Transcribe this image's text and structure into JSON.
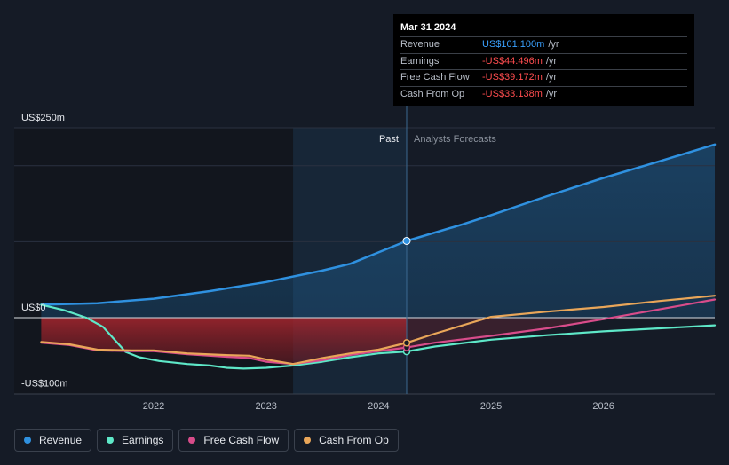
{
  "chart_data": {
    "type": "line",
    "title": "",
    "xlabel": "",
    "ylabel": "",
    "ylim": [
      -100,
      250
    ],
    "y_axis_labels": [
      {
        "value": 250,
        "label": "US$250m"
      },
      {
        "value": 0,
        "label": "US$0"
      },
      {
        "value": -100,
        "label": "-US$100m"
      }
    ],
    "x_ticks": [
      {
        "value": 2022,
        "label": "2022"
      },
      {
        "value": 2023,
        "label": "2023"
      },
      {
        "value": 2024,
        "label": "2024"
      },
      {
        "value": 2025,
        "label": "2025"
      },
      {
        "value": 2026,
        "label": "2026"
      }
    ],
    "xlim": [
      2020.76,
      2026.99
    ],
    "past_label": "Past",
    "forecast_label": "Analysts Forecasts",
    "highlight_start": 2023.24,
    "current_x": 2024.25,
    "series": [
      {
        "name": "Revenue",
        "color": "#2f91e0",
        "points": [
          [
            2021.0,
            17
          ],
          [
            2021.5,
            19
          ],
          [
            2022.0,
            25
          ],
          [
            2022.5,
            35
          ],
          [
            2023.0,
            47
          ],
          [
            2023.5,
            62
          ],
          [
            2023.75,
            71
          ],
          [
            2024.0,
            86
          ],
          [
            2024.25,
            101.1
          ],
          [
            2024.75,
            123
          ],
          [
            2025.0,
            135
          ],
          [
            2025.5,
            160
          ],
          [
            2026.0,
            184
          ],
          [
            2026.5,
            206
          ],
          [
            2026.99,
            228
          ]
        ]
      },
      {
        "name": "Earnings",
        "color": "#5ee8c8",
        "points": [
          [
            2021.0,
            17
          ],
          [
            2021.2,
            10
          ],
          [
            2021.4,
            0
          ],
          [
            2021.55,
            -12
          ],
          [
            2021.75,
            -45
          ],
          [
            2021.87,
            -52
          ],
          [
            2022.05,
            -57
          ],
          [
            2022.3,
            -61
          ],
          [
            2022.5,
            -63
          ],
          [
            2022.65,
            -66
          ],
          [
            2022.8,
            -67
          ],
          [
            2023.0,
            -66
          ],
          [
            2023.24,
            -63
          ],
          [
            2023.5,
            -58
          ],
          [
            2023.75,
            -52
          ],
          [
            2024.0,
            -47
          ],
          [
            2024.25,
            -44.5
          ],
          [
            2024.5,
            -38
          ],
          [
            2025.0,
            -29
          ],
          [
            2025.5,
            -23
          ],
          [
            2026.0,
            -18
          ],
          [
            2026.5,
            -14
          ],
          [
            2026.99,
            -10
          ]
        ]
      },
      {
        "name": "Free Cash Flow",
        "color": "#d84c8a",
        "points": [
          [
            2021.0,
            -33
          ],
          [
            2021.25,
            -36
          ],
          [
            2021.5,
            -43
          ],
          [
            2021.8,
            -44
          ],
          [
            2022.0,
            -44
          ],
          [
            2022.3,
            -48
          ],
          [
            2022.6,
            -51
          ],
          [
            2022.85,
            -53
          ],
          [
            2023.0,
            -58
          ],
          [
            2023.24,
            -61
          ],
          [
            2023.5,
            -56
          ],
          [
            2023.75,
            -49
          ],
          [
            2024.0,
            -44
          ],
          [
            2024.25,
            -39.2
          ],
          [
            2024.5,
            -33
          ],
          [
            2025.0,
            -24
          ],
          [
            2025.5,
            -14
          ],
          [
            2026.0,
            -2
          ],
          [
            2026.5,
            11
          ],
          [
            2026.99,
            24
          ]
        ]
      },
      {
        "name": "Cash From Op",
        "color": "#e9a659",
        "points": [
          [
            2021.0,
            -32
          ],
          [
            2021.25,
            -35
          ],
          [
            2021.5,
            -42
          ],
          [
            2021.8,
            -43
          ],
          [
            2022.0,
            -43
          ],
          [
            2022.3,
            -47
          ],
          [
            2022.6,
            -49
          ],
          [
            2022.85,
            -50
          ],
          [
            2023.0,
            -55
          ],
          [
            2023.24,
            -61
          ],
          [
            2023.5,
            -53
          ],
          [
            2023.75,
            -47
          ],
          [
            2024.0,
            -42
          ],
          [
            2024.25,
            -33.1
          ],
          [
            2024.5,
            -21
          ],
          [
            2025.0,
            1
          ],
          [
            2025.5,
            8
          ],
          [
            2026.0,
            14
          ],
          [
            2026.5,
            22
          ],
          [
            2026.99,
            29
          ]
        ]
      }
    ]
  },
  "tooltip": {
    "date": "Mar 31 2024",
    "rows": [
      {
        "label": "Revenue",
        "value": "US$101.100m",
        "unit": "/yr"
      },
      {
        "label": "Earnings",
        "value": "-US$44.496m",
        "unit": "/yr"
      },
      {
        "label": "Free Cash Flow",
        "value": "-US$39.172m",
        "unit": "/yr"
      },
      {
        "label": "Cash From Op",
        "value": "-US$33.138m",
        "unit": "/yr"
      }
    ]
  },
  "legend": [
    {
      "label": "Revenue",
      "color": "#2f91e0"
    },
    {
      "label": "Earnings",
      "color": "#5ee8c8"
    },
    {
      "label": "Free Cash Flow",
      "color": "#d84c8a"
    },
    {
      "label": "Cash From Op",
      "color": "#e9a659"
    }
  ]
}
